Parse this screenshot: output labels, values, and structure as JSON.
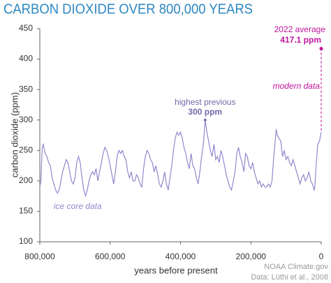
{
  "chart_data": {
    "type": "line",
    "title": "CARBON DIOXIDE OVER 800,000 YEARS",
    "x_label": "years before present",
    "y_label": "carbon dioxide (ppm)",
    "xlim": [
      800000,
      0
    ],
    "xticks": [
      {
        "value": 800000,
        "label": "800,000"
      },
      {
        "value": 600000,
        "label": "600,000"
      },
      {
        "value": 400000,
        "label": "400,000"
      },
      {
        "value": 200000,
        "label": "200,000"
      },
      0
    ],
    "ylim": [
      100,
      450
    ],
    "yticks": [
      100,
      150,
      200,
      250,
      300,
      350,
      400,
      450
    ],
    "grid": false,
    "series": [
      {
        "name": "ice core data",
        "color": "#8f89cc",
        "x": [
          800000,
          797000,
          793000,
          790000,
          785000,
          780000,
          775000,
          770000,
          765000,
          760000,
          755000,
          750000,
          745000,
          740000,
          735000,
          730000,
          725000,
          720000,
          715000,
          710000,
          705000,
          700000,
          695000,
          690000,
          685000,
          680000,
          675000,
          670000,
          665000,
          660000,
          655000,
          650000,
          645000,
          640000,
          635000,
          630000,
          625000,
          620000,
          615000,
          610000,
          605000,
          600000,
          595000,
          590000,
          585000,
          580000,
          575000,
          570000,
          565000,
          560000,
          555000,
          550000,
          545000,
          540000,
          535000,
          530000,
          525000,
          520000,
          515000,
          510000,
          505000,
          500000,
          495000,
          490000,
          485000,
          480000,
          475000,
          470000,
          465000,
          460000,
          455000,
          450000,
          445000,
          440000,
          435000,
          430000,
          425000,
          420000,
          415000,
          410000,
          405000,
          400000,
          395000,
          390000,
          385000,
          380000,
          375000,
          370000,
          365000,
          360000,
          355000,
          350000,
          345000,
          340000,
          335000,
          330000,
          325000,
          320000,
          315000,
          310000,
          305000,
          300000,
          295000,
          290000,
          285000,
          280000,
          275000,
          270000,
          265000,
          260000,
          255000,
          250000,
          245000,
          240000,
          235000,
          230000,
          225000,
          220000,
          215000,
          210000,
          205000,
          200000,
          195000,
          190000,
          185000,
          180000,
          175000,
          170000,
          165000,
          160000,
          155000,
          150000,
          145000,
          140000,
          135000,
          130000,
          128000,
          125000,
          120000,
          115000,
          110000,
          105000,
          100000,
          95000,
          90000,
          85000,
          80000,
          75000,
          70000,
          65000,
          60000,
          55000,
          50000,
          45000,
          40000,
          35000,
          30000,
          25000,
          20000,
          18000,
          15000,
          12000,
          10000,
          5000,
          2000,
          250
        ],
        "values": [
          190,
          200,
          255,
          260,
          245,
          240,
          230,
          225,
          205,
          195,
          185,
          180,
          185,
          200,
          215,
          225,
          235,
          230,
          215,
          200,
          195,
          205,
          230,
          240,
          230,
          205,
          185,
          175,
          185,
          200,
          210,
          215,
          210,
          220,
          200,
          215,
          230,
          245,
          255,
          250,
          240,
          225,
          210,
          195,
          215,
          240,
          250,
          245,
          250,
          240,
          235,
          215,
          205,
          215,
          200,
          200,
          210,
          205,
          195,
          190,
          220,
          240,
          250,
          245,
          235,
          230,
          215,
          225,
          210,
          195,
          190,
          200,
          215,
          195,
          185,
          205,
          225,
          250,
          270,
          280,
          275,
          280,
          270,
          255,
          245,
          230,
          220,
          245,
          225,
          220,
          205,
          195,
          215,
          240,
          260,
          300,
          280,
          265,
          250,
          240,
          260,
          235,
          240,
          230,
          250,
          240,
          225,
          210,
          200,
          190,
          185,
          200,
          215,
          245,
          255,
          240,
          230,
          215,
          245,
          240,
          225,
          220,
          230,
          215,
          205,
          195,
          200,
          190,
          195,
          190,
          190,
          195,
          190,
          200,
          240,
          270,
          285,
          275,
          270,
          265,
          240,
          250,
          235,
          240,
          230,
          225,
          235,
          225,
          215,
          205,
          195,
          205,
          210,
          200,
          205,
          215,
          200,
          195,
          185,
          190,
          220,
          245,
          260,
          265,
          275,
          280
        ]
      },
      {
        "name": "modern data",
        "color": "#c0139c",
        "x": [
          0
        ],
        "values": [
          417.1
        ],
        "value_labels": [
          "417.1 ppm"
        ]
      }
    ],
    "annotations": [
      {
        "text": "highest previous",
        "label": "300 ppm",
        "x": 330000,
        "y": 300
      },
      {
        "text": "2022 average"
      }
    ],
    "source": [
      "NOAA Climate.gov",
      "Data: Lüthi et al., 2008"
    ]
  }
}
